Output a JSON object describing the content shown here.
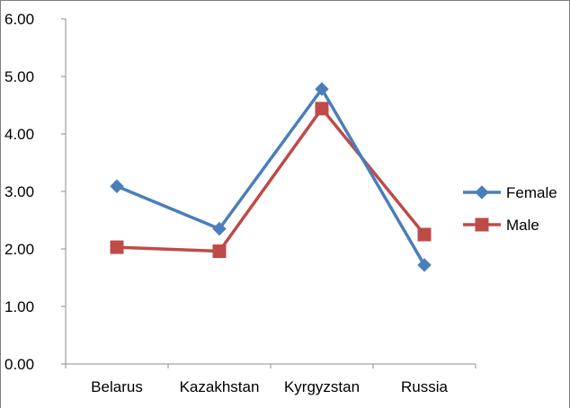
{
  "chart_data": {
    "type": "line",
    "categories": [
      "Belarus",
      "Kazakhstan",
      "Kyrgyzstan",
      "Russia"
    ],
    "series": [
      {
        "name": "Female",
        "values": [
          3.09,
          2.35,
          4.78,
          1.72
        ],
        "color": "#4a7ebb",
        "marker": "diamond"
      },
      {
        "name": "Male",
        "values": [
          2.03,
          1.96,
          4.44,
          2.25
        ],
        "color": "#be4b48",
        "marker": "square"
      }
    ],
    "ylim": [
      0,
      6
    ],
    "yticks": [
      "0.00",
      "1.00",
      "2.00",
      "3.00",
      "4.00",
      "5.00",
      "6.00"
    ],
    "title": "",
    "xlabel": "",
    "ylabel": "",
    "grid": false,
    "legend": "right"
  }
}
